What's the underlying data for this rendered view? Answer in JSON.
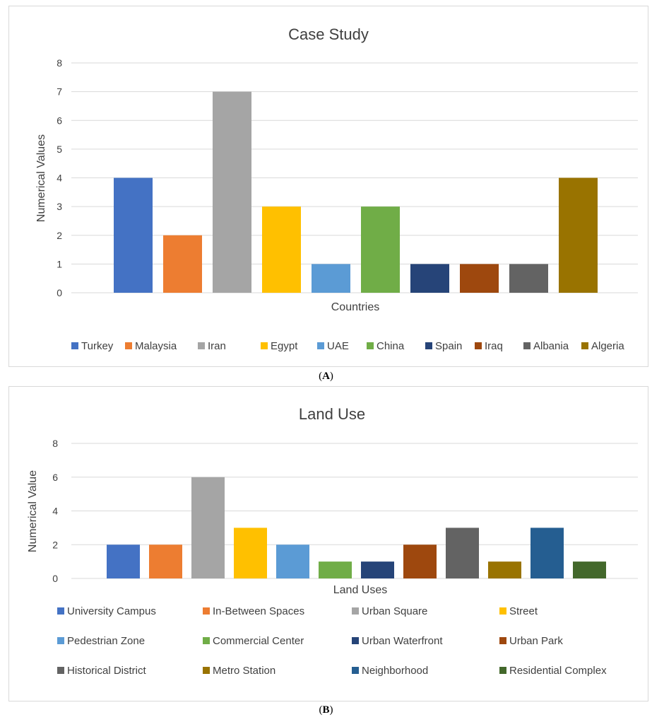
{
  "chart_data": [
    {
      "type": "bar",
      "title": "Case Study",
      "xlabel": "Countries",
      "ylabel": "Numerical Values",
      "ylim": [
        0,
        8
      ],
      "yticks": [
        0,
        1,
        2,
        3,
        4,
        5,
        6,
        7,
        8
      ],
      "grid": true,
      "legend_position": "bottom",
      "series": [
        {
          "name": "Turkey",
          "values": [
            4
          ],
          "color": "#4472C4"
        },
        {
          "name": "Malaysia",
          "values": [
            2
          ],
          "color": "#ED7D31"
        },
        {
          "name": "Iran",
          "values": [
            7
          ],
          "color": "#A5A5A5"
        },
        {
          "name": "Egypt",
          "values": [
            3
          ],
          "color": "#FFC000"
        },
        {
          "name": "UAE",
          "values": [
            1
          ],
          "color": "#5B9BD5"
        },
        {
          "name": "China",
          "values": [
            3
          ],
          "color": "#70AD47"
        },
        {
          "name": "Spain",
          "values": [
            1
          ],
          "color": "#264478"
        },
        {
          "name": "Iraq",
          "values": [
            1
          ],
          "color": "#9E480E"
        },
        {
          "name": "Albania",
          "values": [
            1
          ],
          "color": "#636363"
        },
        {
          "name": "Algeria",
          "values": [
            4
          ],
          "color": "#997300"
        }
      ]
    },
    {
      "type": "bar",
      "title": "Land Use",
      "xlabel": "Land Uses",
      "ylabel": "Numerical Value",
      "ylim": [
        0,
        8
      ],
      "yticks": [
        0,
        2,
        4,
        6,
        8
      ],
      "grid": true,
      "legend_position": "bottom",
      "series": [
        {
          "name": "University Campus",
          "values": [
            2
          ],
          "color": "#4472C4"
        },
        {
          "name": "In-Between Spaces",
          "values": [
            2
          ],
          "color": "#ED7D31"
        },
        {
          "name": "Urban Square",
          "values": [
            6
          ],
          "color": "#A5A5A5"
        },
        {
          "name": "Street",
          "values": [
            3
          ],
          "color": "#FFC000"
        },
        {
          "name": "Pedestrian Zone",
          "values": [
            2
          ],
          "color": "#5B9BD5"
        },
        {
          "name": "Commercial Center",
          "values": [
            1
          ],
          "color": "#70AD47"
        },
        {
          "name": "Urban Waterfront",
          "values": [
            1
          ],
          "color": "#264478"
        },
        {
          "name": "Urban Park",
          "values": [
            2
          ],
          "color": "#9E480E"
        },
        {
          "name": "Historical District",
          "values": [
            3
          ],
          "color": "#636363"
        },
        {
          "name": "Metro Station",
          "values": [
            1
          ],
          "color": "#997300"
        },
        {
          "name": "Neighborhood",
          "values": [
            3
          ],
          "color": "#255E91"
        },
        {
          "name": "Residential Complex",
          "values": [
            1
          ],
          "color": "#43682B"
        }
      ]
    }
  ],
  "captions": {
    "a_open": "(",
    "a_letter": "A",
    "a_close": ")",
    "b_open": "(",
    "b_letter": "B",
    "b_close": ")"
  }
}
